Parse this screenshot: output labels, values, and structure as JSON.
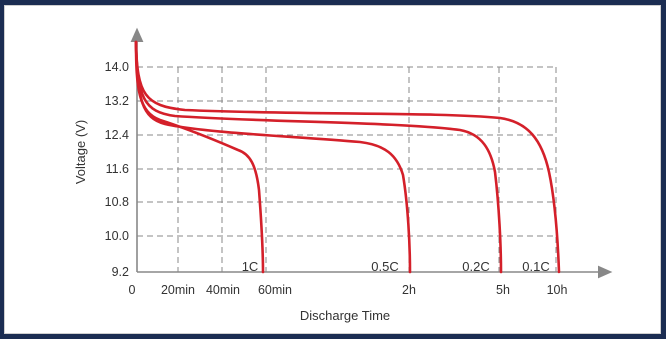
{
  "chart_data": {
    "type": "line",
    "title": "",
    "xlabel": "Discharge Time",
    "ylabel": "Voltage (V)",
    "ylim": [
      9.2,
      14.0
    ],
    "yticks": [
      "14.0",
      "13.2",
      "12.4",
      "11.6",
      "10.8",
      "10.0",
      "9.2"
    ],
    "xticks": [
      "0",
      "20min",
      "40min",
      "60min",
      "2h",
      "5h",
      "10h"
    ],
    "grid": true,
    "colors": {
      "curve": "#d4202a",
      "grid": "#8a8a8a",
      "axis": "#888888"
    },
    "series": [
      {
        "name": "1C",
        "x": [
          "0",
          "10min",
          "30min",
          "50min",
          "56min",
          "60min"
        ],
        "y": [
          14.3,
          13.0,
          12.8,
          12.2,
          11.8,
          9.2
        ]
      },
      {
        "name": "0.5C",
        "x": [
          "0",
          "20min",
          "60min",
          "1.5h",
          "1.9h",
          "2h"
        ],
        "y": [
          14.3,
          12.9,
          12.6,
          12.3,
          11.5,
          9.2
        ]
      },
      {
        "name": "0.2C",
        "x": [
          "0",
          "30min",
          "2h",
          "4h",
          "4.7h",
          "5h"
        ],
        "y": [
          14.3,
          12.9,
          12.7,
          12.5,
          11.7,
          9.2
        ]
      },
      {
        "name": "0.1C",
        "x": [
          "0",
          "40min",
          "4h",
          "8h",
          "9.3h",
          "10h"
        ],
        "y": [
          14.3,
          13.0,
          12.9,
          12.6,
          11.9,
          9.2
        ]
      }
    ]
  }
}
